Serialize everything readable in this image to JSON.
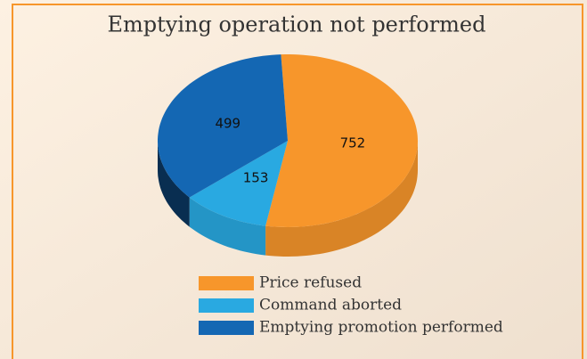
{
  "chart_data": {
    "type": "pie",
    "title": "Emptying operation not performed",
    "categories": [
      "Price refused",
      "Command aborted",
      "Emptying promotion performed"
    ],
    "values": [
      752,
      153,
      499
    ],
    "colors": [
      "#f7962b",
      "#29a9e1",
      "#1467b3"
    ]
  }
}
